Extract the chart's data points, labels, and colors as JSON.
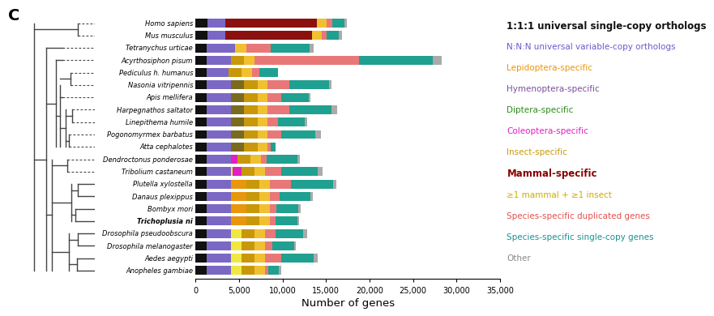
{
  "species": [
    "Homo sapiens",
    "Mus musculus",
    "Tetranychus urticae",
    "Acyrthosiphon pisum",
    "Pediculus h. humanus",
    "Nasonia vitripennis",
    "Apis mellifera",
    "Harpegnathos saltator",
    "Linepithema humile",
    "Pogonomyrmex barbatus",
    "Atta cephalotes",
    "Dendroctonus ponderosae",
    "Tribolium castaneum",
    "Plutella xylostella",
    "Danaus plexippus",
    "Bombyx mori",
    "Trichoplusia ni",
    "Drosophila pseudoobscura",
    "Drosophila melanogaster",
    "Aedes aegypti",
    "Anopheles gambiae"
  ],
  "bold_species": [
    "Trichoplusia ni"
  ],
  "categories": [
    "1:1:1 universal single-copy orthologs",
    "N:N:N universal variable-copy orthologs",
    "Lepidoptera-specific",
    "Hymenoptera-specific",
    "Diptera-specific",
    "Coleoptera-specific",
    "Insect-specific",
    "Mammal-specific",
    "≥1 mammal + ≥1 insect",
    "Species-specific duplicated genes",
    "Species-specific single-copy genes",
    "Other"
  ],
  "legend_text_colors": [
    "#111111",
    "#6a5acd",
    "#e8960c",
    "#7b4f9e",
    "#2e8b1a",
    "#e020c0",
    "#c8980a",
    "#8b0000",
    "#ccaa00",
    "#e05050",
    "#1a9090",
    "#888888"
  ],
  "bar_colors": [
    "#111111",
    "#7b68c5",
    "#e8960c",
    "#7a6a20",
    "#f0e840",
    "#e020c0",
    "#c8980a",
    "#8b1010",
    "#f0c030",
    "#e87878",
    "#20a090",
    "#aaaaaa"
  ],
  "data": {
    "Homo sapiens": [
      1400,
      2000,
      0,
      0,
      0,
      0,
      0,
      10500,
      1200,
      600,
      1400,
      300
    ],
    "Mus musculus": [
      1400,
      2000,
      0,
      0,
      0,
      0,
      0,
      10000,
      1100,
      600,
      1400,
      300
    ],
    "Tetranychus urticae": [
      1300,
      3200,
      0,
      0,
      0,
      0,
      0,
      0,
      1300,
      2800,
      4500,
      500
    ],
    "Acyrthosiphon pisum": [
      1300,
      2800,
      0,
      0,
      0,
      0,
      1500,
      0,
      1200,
      12000,
      8500,
      1000
    ],
    "Pediculus h. humanus": [
      1300,
      2500,
      0,
      0,
      0,
      0,
      1500,
      0,
      1200,
      800,
      2200,
      0
    ],
    "Nasonia vitripennis": [
      1300,
      2800,
      0,
      1500,
      0,
      0,
      1500,
      0,
      1200,
      2500,
      4500,
      300
    ],
    "Apis mellifera": [
      1300,
      2800,
      0,
      1500,
      0,
      0,
      1500,
      0,
      1200,
      1500,
      3200,
      200
    ],
    "Harpegnathos saltator": [
      1300,
      2800,
      0,
      1500,
      0,
      0,
      1500,
      0,
      1200,
      2500,
      4800,
      700
    ],
    "Linepithema humile": [
      1300,
      2800,
      0,
      1500,
      0,
      0,
      1500,
      0,
      1200,
      1200,
      3000,
      300
    ],
    "Pogonomyrmex barbatus": [
      1300,
      2800,
      0,
      1500,
      0,
      0,
      1500,
      0,
      1200,
      1500,
      4000,
      600
    ],
    "Atta cephalotes": [
      1300,
      2800,
      0,
      1500,
      0,
      0,
      1500,
      0,
      1200,
      300,
      600,
      0
    ],
    "Dendroctonus ponderosae": [
      1300,
      2800,
      0,
      0,
      0,
      700,
      1500,
      0,
      1200,
      700,
      3500,
      300
    ],
    "Tribolium castaneum": [
      1300,
      2800,
      0,
      0,
      200,
      1000,
      1500,
      0,
      1200,
      1800,
      4200,
      600
    ],
    "Plutella xylostella": [
      1300,
      2800,
      1700,
      0,
      0,
      0,
      1500,
      0,
      1200,
      2500,
      4800,
      400
    ],
    "Danaus plexippus": [
      1300,
      2800,
      1700,
      0,
      0,
      0,
      1500,
      0,
      1200,
      1200,
      3500,
      300
    ],
    "Bombyx mori": [
      1300,
      2800,
      1700,
      0,
      0,
      0,
      1500,
      0,
      1200,
      800,
      2500,
      300
    ],
    "Trichoplusia ni": [
      1300,
      2800,
      1700,
      0,
      0,
      0,
      1500,
      0,
      1200,
      700,
      2500,
      200
    ],
    "Drosophila pseudoobscura": [
      1300,
      2800,
      0,
      0,
      1200,
      0,
      1500,
      0,
      1200,
      1200,
      3200,
      400
    ],
    "Drosophila melanogaster": [
      1300,
      2800,
      0,
      0,
      1200,
      0,
      1500,
      0,
      1200,
      800,
      2500,
      200
    ],
    "Aedes aegypti": [
      1300,
      2800,
      0,
      0,
      1200,
      0,
      1500,
      0,
      1200,
      1800,
      3800,
      400
    ],
    "Anopheles gambiae": [
      1300,
      2800,
      0,
      0,
      1200,
      0,
      1500,
      0,
      1200,
      400,
      1200,
      200
    ]
  },
  "xlim": [
    0,
    35000
  ],
  "xticks": [
    0,
    5000,
    10000,
    15000,
    20000,
    25000,
    30000,
    35000
  ],
  "xlabel": "Number of genes",
  "panel_label": "C",
  "bar_height": 0.72
}
